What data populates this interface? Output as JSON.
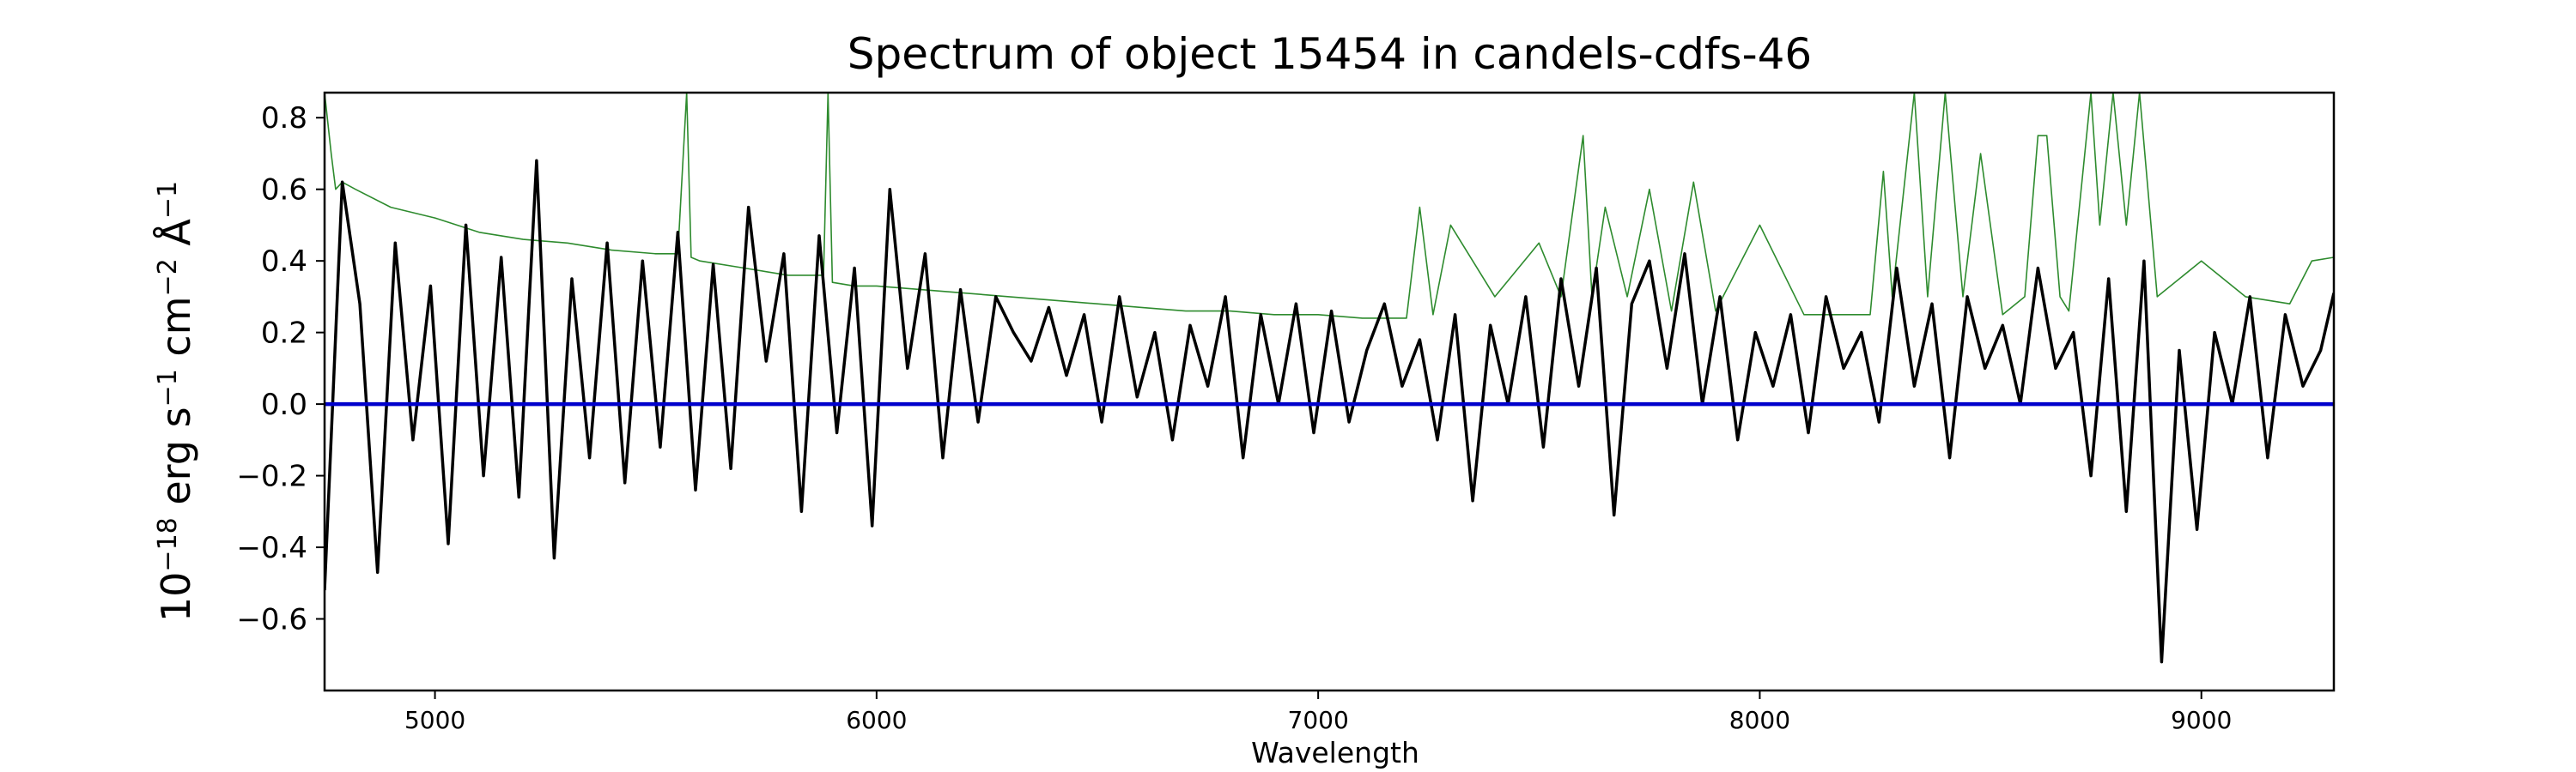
{
  "chart_data": {
    "type": "line",
    "title": "Spectrum of object 15454 in candels-cdfs-46",
    "xlabel": "Wavelength",
    "ylabel": {
      "base": "10",
      "exp": "−18",
      "rest": " erg s",
      "s_exp": "−1",
      "cm": " cm",
      "cm_exp": "−2",
      "angstrom": " Å",
      "a_exp": "−1"
    },
    "xlim": [
      4750,
      9300
    ],
    "ylim": [
      -0.8,
      0.87
    ],
    "xticks": [
      5000,
      6000,
      7000,
      8000,
      9000
    ],
    "yticks": [
      -0.6,
      -0.4,
      -0.2,
      0.0,
      0.2,
      0.4,
      0.6,
      0.8
    ],
    "ytick_labels": [
      "−0.6",
      "−0.4",
      "−0.2",
      "0.0",
      "0.2",
      "0.4",
      "0.6",
      "0.8"
    ],
    "grid": false,
    "colors": {
      "flux": "#000000",
      "error": "#2e8b2e",
      "zero": "#0000cc"
    },
    "series": [
      {
        "role": "flux",
        "x": [
          4750,
          4790,
          4830,
          4870,
          4910,
          4950,
          4990,
          5030,
          5070,
          5110,
          5150,
          5190,
          5230,
          5270,
          5310,
          5350,
          5390,
          5430,
          5470,
          5510,
          5550,
          5590,
          5630,
          5670,
          5710,
          5750,
          5790,
          5830,
          5870,
          5910,
          5950,
          5990,
          6030,
          6070,
          6110,
          6150,
          6190,
          6230,
          6270,
          6310,
          6350,
          6390,
          6430,
          6470,
          6510,
          6550,
          6590,
          6630,
          6670,
          6710,
          6750,
          6790,
          6830,
          6870,
          6910,
          6950,
          6990,
          7030,
          7070,
          7110,
          7150,
          7190,
          7230,
          7270,
          7310,
          7350,
          7390,
          7430,
          7470,
          7510,
          7550,
          7590,
          7630,
          7670,
          7710,
          7750,
          7790,
          7830,
          7870,
          7910,
          7950,
          7990,
          8030,
          8070,
          8110,
          8150,
          8190,
          8230,
          8270,
          8310,
          8350,
          8390,
          8430,
          8470,
          8510,
          8550,
          8590,
          8630,
          8670,
          8710,
          8750,
          8790,
          8830,
          8870,
          8910,
          8950,
          8990,
          9030,
          9070,
          9110,
          9150,
          9190,
          9230,
          9270,
          9300
        ],
        "y": [
          -0.52,
          0.62,
          0.28,
          -0.47,
          0.45,
          -0.1,
          0.33,
          -0.39,
          0.5,
          -0.2,
          0.41,
          -0.26,
          0.68,
          -0.43,
          0.35,
          -0.15,
          0.45,
          -0.22,
          0.4,
          -0.12,
          0.48,
          -0.24,
          0.39,
          -0.18,
          0.55,
          0.12,
          0.42,
          -0.3,
          0.47,
          -0.08,
          0.38,
          -0.34,
          0.6,
          0.1,
          0.42,
          -0.15,
          0.32,
          -0.05,
          0.3,
          0.2,
          0.12,
          0.27,
          0.08,
          0.25,
          -0.05,
          0.3,
          0.02,
          0.2,
          -0.1,
          0.22,
          0.05,
          0.3,
          -0.15,
          0.25,
          0.0,
          0.28,
          -0.08,
          0.26,
          -0.05,
          0.15,
          0.28,
          0.05,
          0.18,
          -0.1,
          0.25,
          -0.27,
          0.22,
          0.0,
          0.3,
          -0.12,
          0.35,
          0.05,
          0.38,
          -0.31,
          0.28,
          0.4,
          0.1,
          0.42,
          0.0,
          0.3,
          -0.1,
          0.2,
          0.05,
          0.25,
          -0.08,
          0.3,
          0.1,
          0.2,
          -0.05,
          0.38,
          0.05,
          0.28,
          -0.15,
          0.3,
          0.1,
          0.22,
          0.0,
          0.38,
          0.1,
          0.2,
          -0.2,
          0.35,
          -0.3,
          0.4,
          -0.72,
          0.15,
          -0.35,
          0.2,
          0.0,
          0.3,
          -0.15,
          0.25,
          0.05,
          0.15,
          0.31
        ]
      },
      {
        "role": "error",
        "x": [
          4750,
          4765,
          4775,
          4790,
          4820,
          4900,
          5000,
          5100,
          5200,
          5300,
          5400,
          5500,
          5550,
          5570,
          5580,
          5600,
          5700,
          5800,
          5880,
          5890,
          5900,
          5950,
          6000,
          6100,
          6200,
          6300,
          6400,
          6500,
          6600,
          6700,
          6800,
          6900,
          7000,
          7100,
          7200,
          7230,
          7260,
          7300,
          7400,
          7500,
          7550,
          7600,
          7620,
          7650,
          7700,
          7750,
          7800,
          7850,
          7900,
          8000,
          8100,
          8200,
          8250,
          8280,
          8300,
          8350,
          8380,
          8420,
          8460,
          8500,
          8550,
          8600,
          8630,
          8650,
          8680,
          8700,
          8750,
          8770,
          8800,
          8830,
          8860,
          8900,
          9000,
          9100,
          9200,
          9250,
          9300
        ],
        "y": [
          0.87,
          0.7,
          0.6,
          0.62,
          0.6,
          0.55,
          0.52,
          0.48,
          0.46,
          0.45,
          0.43,
          0.42,
          0.42,
          0.87,
          0.41,
          0.4,
          0.38,
          0.36,
          0.36,
          0.87,
          0.34,
          0.33,
          0.33,
          0.32,
          0.31,
          0.3,
          0.29,
          0.28,
          0.27,
          0.26,
          0.26,
          0.25,
          0.25,
          0.24,
          0.24,
          0.55,
          0.25,
          0.5,
          0.3,
          0.45,
          0.3,
          0.75,
          0.3,
          0.55,
          0.3,
          0.6,
          0.26,
          0.62,
          0.26,
          0.5,
          0.25,
          0.25,
          0.25,
          0.65,
          0.3,
          0.87,
          0.3,
          0.87,
          0.3,
          0.7,
          0.25,
          0.3,
          0.75,
          0.75,
          0.3,
          0.26,
          0.87,
          0.5,
          0.87,
          0.5,
          0.87,
          0.3,
          0.4,
          0.3,
          0.28,
          0.4,
          0.41
        ]
      },
      {
        "role": "zero",
        "x": [
          4750,
          9300
        ],
        "y": [
          0.0,
          0.0
        ]
      }
    ]
  }
}
